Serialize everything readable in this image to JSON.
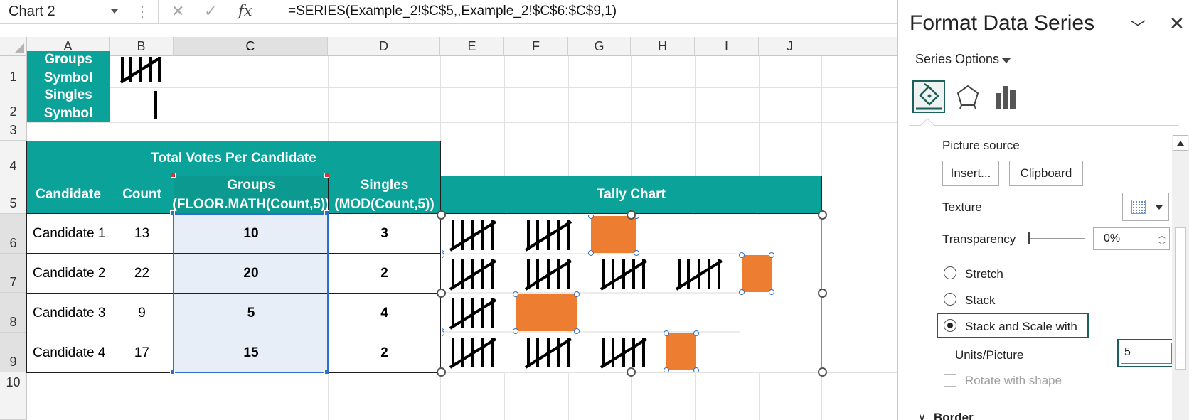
{
  "formula_bar": {
    "name_box": "Chart 2",
    "fx_label": "fx",
    "formula": "=SERIES(Example_2!$C$5,,Example_2!$C$6:$C$9,1)"
  },
  "columns": [
    "A",
    "B",
    "C",
    "D",
    "E",
    "F",
    "G",
    "H",
    "I",
    "J"
  ],
  "rows": [
    "1",
    "2",
    "3",
    "4",
    "5",
    "6",
    "7",
    "8",
    "9",
    "10"
  ],
  "symbols": {
    "groups_label_line1": "Groups",
    "groups_label_line2": "Symbol",
    "singles_label_line1": "Singles",
    "singles_label_line2": "Symbol"
  },
  "table": {
    "title": "Total Votes Per Candidate",
    "headers": {
      "candidate": "Candidate",
      "count": "Count",
      "groups_line1": "Groups",
      "groups_line2": "(FLOOR.MATH(Count,5))",
      "singles_line1": "Singles",
      "singles_line2": "(MOD(Count,5))"
    },
    "rows": [
      {
        "candidate": "Candidate 1",
        "count": "13",
        "groups": "10",
        "singles": "3"
      },
      {
        "candidate": "Candidate 2",
        "count": "22",
        "groups": "20",
        "singles": "2"
      },
      {
        "candidate": "Candidate 3",
        "count": "9",
        "groups": "5",
        "singles": "4"
      },
      {
        "candidate": "Candidate 4",
        "count": "17",
        "groups": "15",
        "singles": "2"
      }
    ]
  },
  "chart": {
    "header": "Tally Chart",
    "tally_groups_per_row": [
      2,
      4,
      1,
      3
    ],
    "singles_placeholder_color": "#ed7d31"
  },
  "pane": {
    "title": "Format Data Series",
    "series_options_label": "Series Options",
    "tabs": [
      "fill-line-icon",
      "effects-pentagon-icon",
      "series-options-bars-icon"
    ],
    "picture_source_label": "Picture source",
    "insert_button": "Insert...",
    "clipboard_button": "Clipboard",
    "texture_label": "Texture",
    "transparency_label": "Transparency",
    "transparency_value": "0%",
    "radio_stretch": "Stretch",
    "radio_stack": "Stack",
    "radio_stack_scale": "Stack and Scale with",
    "units_label": "Units/Picture",
    "units_value": "5",
    "rotate_label": "Rotate with shape",
    "border_label": "Border"
  },
  "colors": {
    "teal": "#0ba29a",
    "orange": "#ed7d31",
    "selection": "#e8eef8",
    "pane_accent": "#1d5f5a"
  }
}
